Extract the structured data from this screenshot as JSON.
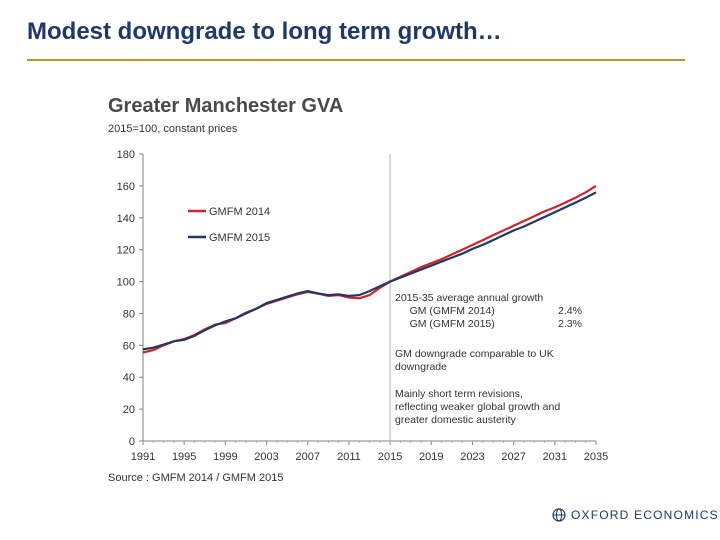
{
  "slide": {
    "title": "Modest downgrade to long term growth…"
  },
  "chart_data": {
    "type": "line",
    "title": "Greater Manchester GVA",
    "subtitle": "2015=100, constant prices",
    "xlabel": "",
    "ylabel": "",
    "x_ticks": [
      "1991",
      "1995",
      "1999",
      "2003",
      "2007",
      "2011",
      "2015",
      "2019",
      "2023",
      "2027",
      "2031",
      "2035"
    ],
    "xlim": [
      1991,
      2035
    ],
    "ylim": [
      0,
      180
    ],
    "y_ticks": [
      0,
      20,
      40,
      60,
      80,
      100,
      120,
      140,
      160,
      180
    ],
    "grid": false,
    "vertical_marker_year": 2015,
    "legend_position": "upper-left",
    "series": [
      {
        "name": "GMFM 2014",
        "color": "#d0232a",
        "points": [
          [
            1991,
            55.5
          ],
          [
            1992,
            57
          ],
          [
            1993,
            60
          ],
          [
            1994,
            62.5
          ],
          [
            1995,
            64
          ],
          [
            1996,
            66.5
          ],
          [
            1997,
            70
          ],
          [
            1998,
            73
          ],
          [
            1999,
            74
          ],
          [
            2000,
            77
          ],
          [
            2001,
            80.5
          ],
          [
            2002,
            83
          ],
          [
            2003,
            86
          ],
          [
            2004,
            88
          ],
          [
            2005,
            90
          ],
          [
            2006,
            92
          ],
          [
            2007,
            93.5
          ],
          [
            2008,
            92.5
          ],
          [
            2009,
            91
          ],
          [
            2010,
            91.5
          ],
          [
            2011,
            90
          ],
          [
            2012,
            89.5
          ],
          [
            2013,
            91.5
          ],
          [
            2014,
            96
          ],
          [
            2015,
            100
          ],
          [
            2016,
            103
          ],
          [
            2017,
            106
          ],
          [
            2018,
            109
          ],
          [
            2019,
            111.5
          ],
          [
            2020,
            114
          ],
          [
            2021,
            117
          ],
          [
            2022,
            120
          ],
          [
            2023,
            123
          ],
          [
            2024,
            126
          ],
          [
            2025,
            129
          ],
          [
            2026,
            132
          ],
          [
            2027,
            135
          ],
          [
            2028,
            138
          ],
          [
            2029,
            141
          ],
          [
            2030,
            144
          ],
          [
            2031,
            146.5
          ],
          [
            2032,
            149.5
          ],
          [
            2033,
            152.5
          ],
          [
            2034,
            156
          ],
          [
            2035,
            160
          ]
        ]
      },
      {
        "name": "GMFM 2015",
        "color": "#1f3864",
        "points": [
          [
            1991,
            57.5
          ],
          [
            1992,
            58.5
          ],
          [
            1993,
            60.5
          ],
          [
            1994,
            62.5
          ],
          [
            1995,
            63.5
          ],
          [
            1996,
            66
          ],
          [
            1997,
            69.5
          ],
          [
            1998,
            72.5
          ],
          [
            1999,
            75
          ],
          [
            2000,
            77
          ],
          [
            2001,
            80
          ],
          [
            2002,
            83
          ],
          [
            2003,
            86.5
          ],
          [
            2004,
            88.5
          ],
          [
            2005,
            90.5
          ],
          [
            2006,
            92.5
          ],
          [
            2007,
            94
          ],
          [
            2008,
            92.5
          ],
          [
            2009,
            91.5
          ],
          [
            2010,
            92
          ],
          [
            2011,
            91
          ],
          [
            2012,
            91.5
          ],
          [
            2013,
            94
          ],
          [
            2014,
            97
          ],
          [
            2015,
            100
          ],
          [
            2016,
            102.5
          ],
          [
            2017,
            105
          ],
          [
            2018,
            107.5
          ],
          [
            2019,
            110
          ],
          [
            2020,
            112.5
          ],
          [
            2021,
            115
          ],
          [
            2022,
            117.5
          ],
          [
            2023,
            120.5
          ],
          [
            2024,
            123
          ],
          [
            2025,
            126
          ],
          [
            2026,
            129
          ],
          [
            2027,
            132
          ],
          [
            2028,
            134.5
          ],
          [
            2029,
            137.5
          ],
          [
            2030,
            140.5
          ],
          [
            2031,
            143.5
          ],
          [
            2032,
            146.5
          ],
          [
            2033,
            149.5
          ],
          [
            2034,
            152.5
          ],
          [
            2035,
            156
          ]
        ]
      }
    ],
    "annotations": [
      {
        "lines": [
          [
            "2015-35 average annual growth",
            ""
          ],
          [
            "     GM (GMFM 2014)",
            "2.4%"
          ],
          [
            "     GM (GMFM 2015)",
            "2.3%"
          ]
        ]
      },
      {
        "lines": [
          [
            "GM downgrade comparable to UK",
            ""
          ],
          [
            "downgrade",
            ""
          ]
        ]
      },
      {
        "lines": [
          [
            "Mainly short term revisions,",
            ""
          ],
          [
            "reflecting weaker global growth and",
            ""
          ],
          [
            "greater domestic austerity",
            ""
          ]
        ]
      }
    ],
    "source": "Source : GMFM 2014 / GMFM 2015"
  },
  "logo": {
    "text": "OXFORD ECONOMICS",
    "icon": "globe-icon"
  }
}
